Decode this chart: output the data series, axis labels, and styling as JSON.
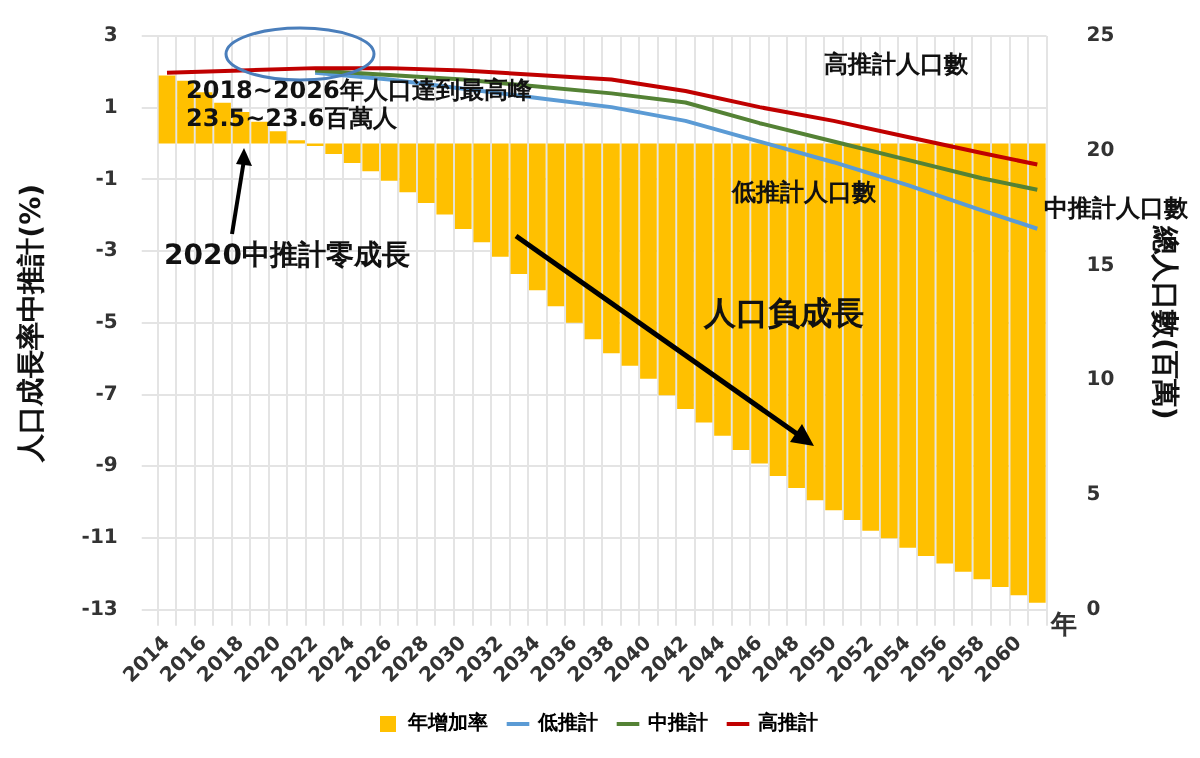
{
  "chart_data": {
    "type": "bar",
    "categories": [
      "2014",
      null,
      "2016",
      null,
      "2018",
      null,
      "2020",
      null,
      "2022",
      null,
      "2024",
      null,
      "2026",
      null,
      "2028",
      null,
      "2030",
      null,
      "2032",
      null,
      "2034",
      null,
      "2036",
      null,
      "2038",
      null,
      "2040",
      null,
      "2042",
      null,
      "2044",
      null,
      "2046",
      null,
      "2048",
      null,
      "2050",
      null,
      "2052",
      null,
      "2054",
      null,
      "2056",
      null,
      "2058",
      null,
      "2060",
      null
    ],
    "series": [
      {
        "name": "年增加率",
        "color": "#ffc000",
        "values": [
          1.9,
          1.75,
          1.43,
          1.14,
          0.88,
          0.61,
          0.34,
          0.09,
          -0.07,
          -0.29,
          -0.54,
          -0.77,
          -1.04,
          -1.36,
          -1.66,
          -1.98,
          -2.38,
          -2.75,
          -3.16,
          -3.64,
          -4.09,
          -4.54,
          -5.0,
          -5.46,
          -5.85,
          -6.2,
          -6.56,
          -7.02,
          -7.4,
          -7.78,
          -8.15,
          -8.55,
          -8.92,
          -9.27,
          -9.61,
          -9.95,
          -10.23,
          -10.5,
          -10.8,
          -11.01,
          -11.27,
          -11.5,
          -11.71,
          -11.94,
          -12.15,
          -12.37,
          -12.6,
          -12.81
        ]
      },
      {
        "type": "line",
        "name": "低推計",
        "color": "#5b9bd5",
        "axis": "y2",
        "values": [
          null,
          null,
          null,
          null,
          null,
          null,
          null,
          null,
          23.4,
          null,
          null,
          null,
          23.1,
          null,
          null,
          null,
          22.7,
          null,
          null,
          null,
          22.3,
          null,
          null,
          null,
          21.9,
          null,
          null,
          null,
          21.3,
          null,
          null,
          null,
          20.4,
          null,
          null,
          null,
          19.5,
          null,
          null,
          null,
          18.5,
          null,
          null,
          null,
          17.4,
          null,
          null,
          16.6
        ]
      },
      {
        "type": "line",
        "name": "中推計",
        "color": "#548235",
        "axis": "y2",
        "values": [
          null,
          null,
          null,
          null,
          null,
          null,
          null,
          null,
          23.5,
          null,
          null,
          null,
          23.3,
          null,
          null,
          null,
          23.1,
          null,
          null,
          null,
          22.8,
          null,
          null,
          null,
          22.5,
          null,
          null,
          null,
          22.1,
          null,
          null,
          null,
          21.2,
          null,
          null,
          null,
          20.4,
          null,
          null,
          null,
          19.6,
          null,
          null,
          null,
          18.8,
          null,
          null,
          18.3
        ]
      },
      {
        "type": "line",
        "name": "高推計",
        "color": "#c00000",
        "axis": "y2",
        "values": [
          23.4,
          null,
          null,
          null,
          23.5,
          null,
          null,
          null,
          23.6,
          null,
          null,
          null,
          23.6,
          null,
          null,
          null,
          23.5,
          null,
          null,
          null,
          23.3,
          null,
          null,
          null,
          23.1,
          null,
          null,
          null,
          22.6,
          null,
          null,
          null,
          21.9,
          null,
          null,
          null,
          21.3,
          null,
          null,
          null,
          20.6,
          null,
          null,
          null,
          19.9,
          null,
          null,
          19.4
        ]
      }
    ],
    "ylim": [
      -13,
      3
    ],
    "yticks": [
      -13,
      -11,
      -9,
      -7,
      -5,
      -3,
      -1,
      1,
      3
    ],
    "y2lim": [
      0,
      25
    ],
    "y2ticks": [
      0,
      5,
      10,
      15,
      20,
      25
    ],
    "xlabel": "年",
    "ylabel": "人口成長率中推計(%)",
    "y2label": "總人口數(百萬)",
    "legend": "bottom",
    "grid": true,
    "marker": "none",
    "annotations": [
      "2018~2026年人口達到最高峰\n23.5~23.6百萬人",
      "2020中推計零成長",
      "人口負成長",
      "高推計人口數",
      "低推計人口數",
      "中推計人口數"
    ]
  }
}
